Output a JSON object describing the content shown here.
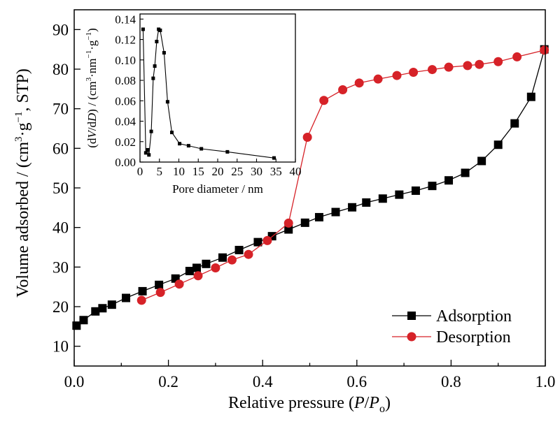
{
  "chart_data": [
    {
      "type": "line",
      "xlabel_parts": {
        "prefix": "Relative pressure (",
        "var1": "P",
        "slash": "/",
        "var2": "P",
        "sub": "o",
        "suffix": ")"
      },
      "ylabel_parts": {
        "prefix": "Volume adsorbed / (cm",
        "sup1": "3",
        "mid": "·g",
        "sup2": "−1",
        "suffix": ", STP)"
      },
      "xlim": [
        0.0,
        1.0
      ],
      "ylim": [
        5,
        95
      ],
      "x_ticks": [
        0.0,
        0.2,
        0.4,
        0.6,
        0.8,
        1.0
      ],
      "x_tick_labels": [
        "0.0",
        "0.2",
        "0.4",
        "0.6",
        "0.8",
        "1.0"
      ],
      "y_ticks": [
        10,
        20,
        30,
        40,
        50,
        60,
        70,
        80,
        90
      ],
      "y_tick_labels": [
        "10",
        "20",
        "30",
        "40",
        "50",
        "60",
        "70",
        "80",
        "90"
      ],
      "legend_position": "bottom-right",
      "series": [
        {
          "name": "Adsorption",
          "color": "#000000",
          "marker": "square",
          "points": [
            [
              0.005,
              15.2
            ],
            [
              0.02,
              16.6
            ],
            [
              0.045,
              18.8
            ],
            [
              0.06,
              19.6
            ],
            [
              0.08,
              20.5
            ],
            [
              0.11,
              22.2
            ],
            [
              0.145,
              23.9
            ],
            [
              0.18,
              25.5
            ],
            [
              0.215,
              27.1
            ],
            [
              0.245,
              29.0
            ],
            [
              0.26,
              29.8
            ],
            [
              0.28,
              30.8
            ],
            [
              0.315,
              32.4
            ],
            [
              0.35,
              34.3
            ],
            [
              0.39,
              36.3
            ],
            [
              0.42,
              37.8
            ],
            [
              0.455,
              39.5
            ],
            [
              0.49,
              41.2
            ],
            [
              0.52,
              42.6
            ],
            [
              0.555,
              43.9
            ],
            [
              0.59,
              45.1
            ],
            [
              0.62,
              46.3
            ],
            [
              0.655,
              47.3
            ],
            [
              0.69,
              48.3
            ],
            [
              0.725,
              49.3
            ],
            [
              0.76,
              50.5
            ],
            [
              0.795,
              51.9
            ],
            [
              0.83,
              53.8
            ],
            [
              0.865,
              56.8
            ],
            [
              0.9,
              60.9
            ],
            [
              0.935,
              66.3
            ],
            [
              0.97,
              73.0
            ],
            [
              0.998,
              85.0
            ]
          ]
        },
        {
          "name": "Desorption",
          "color": "#d62228",
          "marker": "circle",
          "points": [
            [
              0.143,
              21.6
            ],
            [
              0.183,
              23.6
            ],
            [
              0.223,
              25.7
            ],
            [
              0.263,
              27.8
            ],
            [
              0.3,
              29.8
            ],
            [
              0.335,
              31.8
            ],
            [
              0.37,
              33.2
            ],
            [
              0.41,
              36.7
            ],
            [
              0.455,
              41.1
            ],
            [
              0.495,
              62.8
            ],
            [
              0.53,
              72.1
            ],
            [
              0.57,
              74.8
            ],
            [
              0.605,
              76.5
            ],
            [
              0.645,
              77.5
            ],
            [
              0.685,
              78.4
            ],
            [
              0.72,
              79.2
            ],
            [
              0.76,
              79.9
            ],
            [
              0.795,
              80.5
            ],
            [
              0.835,
              80.9
            ],
            [
              0.86,
              81.2
            ],
            [
              0.9,
              81.9
            ],
            [
              0.94,
              83.1
            ],
            [
              0.998,
              84.8
            ]
          ]
        }
      ]
    },
    {
      "type": "line",
      "xlabel": "Pore diameter / nm",
      "ylabel_parts": {
        "prefix": "(d",
        "v1": "V",
        "mid": "/d",
        "v2": "D",
        "mid2": ") / (cm",
        "sup1": "3",
        "mid3": "·nm",
        "sup2": "−1",
        "mid4": "·g",
        "sup3": "−1",
        "suffix": ")"
      },
      "xlim": [
        0,
        40
      ],
      "ylim": [
        0,
        0.145
      ],
      "x_ticks": [
        0,
        5,
        10,
        15,
        20,
        25,
        30,
        35,
        40
      ],
      "x_tick_labels": [
        "0",
        "5",
        "10",
        "15",
        "20",
        "25",
        "30",
        "35",
        "40"
      ],
      "y_ticks": [
        0.0,
        0.02,
        0.04,
        0.06,
        0.08,
        0.1,
        0.12,
        0.14
      ],
      "y_tick_labels": [
        "0.00",
        "0.02",
        "0.04",
        "0.06",
        "0.08",
        "0.10",
        "0.12",
        "0.14"
      ],
      "series": [
        {
          "color": "#000000",
          "marker": "square",
          "points": [
            [
              0.8,
              0.13
            ],
            [
              1.5,
              0.009
            ],
            [
              2.0,
              0.012
            ],
            [
              2.3,
              0.007
            ],
            [
              2.9,
              0.03
            ],
            [
              3.4,
              0.082
            ],
            [
              3.8,
              0.094
            ],
            [
              4.3,
              0.118
            ],
            [
              4.8,
              0.13
            ],
            [
              5.2,
              0.129
            ],
            [
              6.2,
              0.107
            ],
            [
              7.1,
              0.059
            ],
            [
              8.2,
              0.029
            ],
            [
              10.2,
              0.018
            ],
            [
              12.5,
              0.016
            ],
            [
              15.8,
              0.013
            ],
            [
              22.5,
              0.01
            ],
            [
              34.5,
              0.004
            ]
          ]
        }
      ]
    }
  ],
  "legend": {
    "adsorption_label": "Adsorption",
    "desorption_label": "Desorption"
  }
}
